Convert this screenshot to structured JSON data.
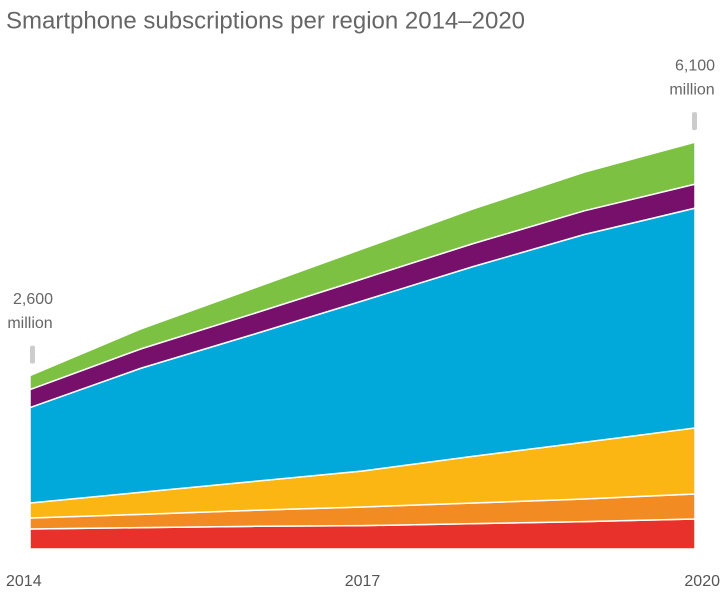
{
  "chart_data": {
    "type": "stacked-area",
    "title": "Smartphone subscriptions per region 2014–2020",
    "categories": [
      "2014",
      null,
      null,
      "2017",
      null,
      null,
      "2020"
    ],
    "ylim": [
      0,
      6500
    ],
    "series": [
      {
        "color": "#e8312a",
        "values": [
          300,
          320,
          340,
          350,
          380,
          410,
          450
        ]
      },
      {
        "color": "#f28c22",
        "values": [
          165,
          200,
          240,
          280,
          310,
          340,
          375
        ]
      },
      {
        "color": "#fbb614",
        "values": [
          225,
          330,
          430,
          540,
          700,
          850,
          990
        ]
      },
      {
        "color": "#00a9d9",
        "values": [
          1430,
          1860,
          2200,
          2550,
          2845,
          3115,
          3295
        ]
      },
      {
        "color": "#76106a",
        "values": [
          270,
          290,
          310,
          330,
          345,
          355,
          360
        ]
      },
      {
        "color": "#7dc142",
        "values": [
          210,
          300,
          380,
          450,
          520,
          580,
          630
        ]
      }
    ],
    "annotations": [
      {
        "value": "2,600",
        "unit": "million"
      },
      {
        "value": "6,100",
        "unit": "million"
      }
    ]
  }
}
